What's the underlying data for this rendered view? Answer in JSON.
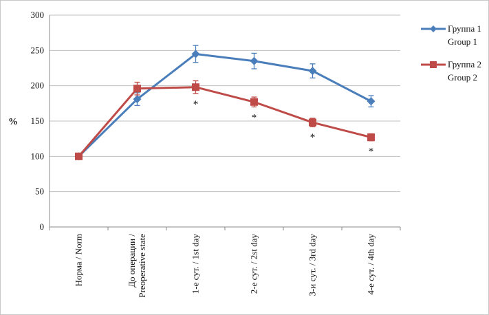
{
  "chart_data": {
    "type": "line",
    "ylabel": "%",
    "xlabel": "",
    "ylim": [
      0,
      300
    ],
    "yticks": [
      0,
      50,
      100,
      150,
      200,
      250,
      300
    ],
    "grid": true,
    "legend_position": "right",
    "categories": [
      "Норма / Norm",
      "До операции / Preoperative state",
      "1-е сут. / 1st day",
      "2-е сут. / 2st day",
      "3-и сут. / 3rd day",
      "4-е сут. / 4th day"
    ],
    "category_lines": [
      [
        "Норма / Norm"
      ],
      [
        "До операции /",
        "Preoperative state"
      ],
      [
        "1-е сут. / 1st day"
      ],
      [
        "2-е сут. / 2st day"
      ],
      [
        "3-и сут. / 3rd day"
      ],
      [
        "4-е сут. / 4th day"
      ]
    ],
    "series": [
      {
        "name": "Группа 1 / Group 1",
        "legend_lines": [
          "Группа 1",
          "Group 1"
        ],
        "color": "#4a7ebb",
        "marker": "diamond",
        "values": [
          100,
          181,
          245,
          235,
          221,
          178
        ],
        "errors": [
          0,
          9,
          12,
          11,
          10,
          8
        ]
      },
      {
        "name": "Группа 2 / Group 2",
        "legend_lines": [
          "Группа 2",
          "Group 2"
        ],
        "color": "#be4b48",
        "marker": "square",
        "values": [
          100,
          196,
          198,
          177,
          148,
          127
        ],
        "errors": [
          0,
          9,
          9,
          7,
          6,
          5
        ]
      }
    ],
    "annotations": [
      {
        "text": "*",
        "category_index": 2
      },
      {
        "text": "*",
        "category_index": 3
      },
      {
        "text": "*",
        "category_index": 4
      },
      {
        "text": "*",
        "category_index": 5
      }
    ]
  }
}
